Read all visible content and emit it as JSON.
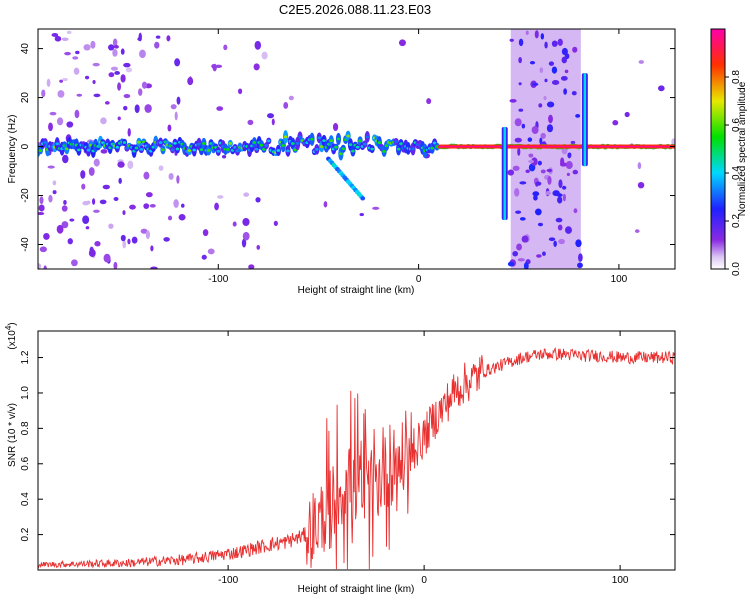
{
  "title": "C2E5.2026.088.11.23.E03",
  "chart_data": [
    {
      "type": "heatmap",
      "xlabel": "Height of straight line (km)",
      "ylabel": "Frequency (Hz)",
      "xlim": [
        -190,
        128
      ],
      "ylim": [
        -50,
        48
      ],
      "xticks": [
        -100,
        0,
        100
      ],
      "xtick_labels": [
        "-100",
        "0",
        "100"
      ],
      "yticks": [
        -40,
        -20,
        0,
        20,
        40
      ],
      "ytick_labels": [
        "-40",
        "-20",
        "0",
        "20",
        "40"
      ],
      "colorbar": {
        "label": "Normalized spectral amplitude",
        "range": [
          0,
          1
        ],
        "ticks": [
          0.0,
          0.2,
          0.4,
          0.6,
          0.8
        ],
        "tick_labels": [
          "0.0",
          "0.2",
          "0.4",
          "0.6",
          "0.8"
        ]
      },
      "features": [
        {
          "name": "main-trace",
          "x_range": [
            -190,
            128
          ],
          "freq": 0,
          "amplitude": [
            0.25,
            1.0
          ]
        },
        {
          "name": "descending-branch",
          "x_from": -45,
          "x_to": -27,
          "freq_from": -5,
          "freq_to": -22
        },
        {
          "name": "noise-band",
          "x_range": [
            46,
            81
          ],
          "freq_range": [
            -50,
            48
          ],
          "amplitude": 0.2
        },
        {
          "name": "vertical-spike",
          "x": 43,
          "freq_range": [
            -30,
            8
          ]
        },
        {
          "name": "vertical-spike",
          "x": 83,
          "freq_range": [
            -8,
            30
          ]
        }
      ]
    },
    {
      "type": "line",
      "xlabel": "Height of straight line (km)",
      "ylabel": "SNR (10 * v/v)",
      "y_exponent": "4",
      "y_multiplier_base": "(x10",
      "y_multiplier_close": ")",
      "xlim": [
        -197,
        128
      ],
      "ylim": [
        0,
        1.35
      ],
      "xticks": [
        -100,
        0,
        100
      ],
      "xtick_labels": [
        "-100",
        "0",
        "100"
      ],
      "yticks": [
        0.2,
        0.4,
        0.6,
        0.8,
        1.0,
        1.2
      ],
      "ytick_labels": [
        "0.2",
        "0.4",
        "0.6",
        "0.8",
        "1.0",
        "1.2"
      ],
      "line_color": "#e83030",
      "series": [
        {
          "name": "SNR",
          "x": [
            -197,
            -150,
            -120,
            -95,
            -80,
            -70,
            -60,
            -52,
            -45,
            -40,
            -35,
            -30,
            -25,
            -20,
            -15,
            -10,
            -5,
            0,
            5,
            10,
            15,
            20,
            25,
            30,
            40,
            50,
            60,
            70,
            80,
            90,
            100,
            110,
            120,
            128
          ],
          "y": [
            0.03,
            0.04,
            0.06,
            0.1,
            0.14,
            0.16,
            0.2,
            0.3,
            0.4,
            0.5,
            0.48,
            0.42,
            0.48,
            0.55,
            0.6,
            0.62,
            0.68,
            0.75,
            0.85,
            0.92,
            1.0,
            1.05,
            1.08,
            1.12,
            1.16,
            1.2,
            1.22,
            1.22,
            1.21,
            1.21,
            1.2,
            1.2,
            1.2,
            1.2
          ]
        }
      ]
    }
  ]
}
